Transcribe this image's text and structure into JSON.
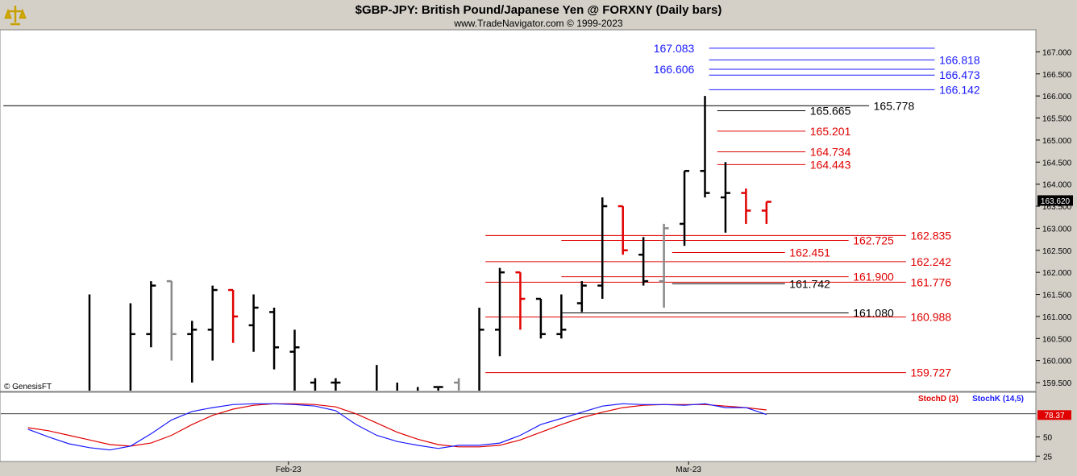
{
  "header": {
    "title": "$GBP-JPY:  British Pound/Japanese Yen @ FORXNY  (Daily bars)",
    "copyright": "www.TradeNavigator.com © 1999-2023",
    "data_source": "© GenesisFT"
  },
  "colors": {
    "black": "#000000",
    "red": "#e00000",
    "gray": "#888888",
    "blue": "#1a1aff",
    "navy": "#00008b",
    "panel_bg": "#ffffff",
    "frame_bg": "#d4d0c8"
  },
  "chart_data": [
    {
      "type": "ohlc",
      "name": "price",
      "title": "$GBP-JPY:  British Pound/Japanese Yen @ FORXNY  (Daily bars)",
      "ylim": [
        159.3,
        167.5
      ],
      "y_ticks": [
        "159.500",
        "160.000",
        "160.500",
        "161.000",
        "161.500",
        "162.000",
        "162.500",
        "163.000",
        "163.500",
        "164.000",
        "164.500",
        "165.000",
        "165.500",
        "166.000",
        "166.500",
        "167.000"
      ],
      "last_price_label": "163.620",
      "last_price": 163.62,
      "x_ticks": [
        {
          "label": "Feb-23",
          "bar": 9.7
        },
        {
          "label": "Mar-23",
          "bar": 29.2
        }
      ],
      "bars": [
        {
          "o": 159.0,
          "h": 161.5,
          "l": 158.5,
          "c": 158.9,
          "col": "black"
        },
        {
          "o": 158.5,
          "h": 158.9,
          "l": 158.0,
          "c": 158.6,
          "col": "black"
        },
        {
          "o": 158.6,
          "h": 161.3,
          "l": 158.3,
          "c": 160.6,
          "col": "black"
        },
        {
          "o": 160.6,
          "h": 161.8,
          "l": 160.3,
          "c": 161.7,
          "col": "black"
        },
        {
          "o": 161.8,
          "h": 161.8,
          "l": 160.0,
          "c": 160.6,
          "col": "gray"
        },
        {
          "o": 160.6,
          "h": 160.9,
          "l": 159.5,
          "c": 160.7,
          "col": "black"
        },
        {
          "o": 160.7,
          "h": 161.7,
          "l": 160.0,
          "c": 161.6,
          "col": "black"
        },
        {
          "o": 161.6,
          "h": 161.6,
          "l": 160.4,
          "c": 161.0,
          "col": "red"
        },
        {
          "o": 160.8,
          "h": 161.5,
          "l": 160.2,
          "c": 161.2,
          "col": "black"
        },
        {
          "o": 161.1,
          "h": 161.2,
          "l": 159.8,
          "c": 160.3,
          "col": "black"
        },
        {
          "o": 160.2,
          "h": 160.7,
          "l": 159.3,
          "c": 160.3,
          "col": "black"
        },
        {
          "o": 159.5,
          "h": 159.6,
          "l": 158.5,
          "c": 158.8,
          "col": "black"
        },
        {
          "o": 159.5,
          "h": 159.6,
          "l": 158.6,
          "c": 159.5,
          "col": "black"
        },
        {
          "o": 158.8,
          "h": 159.1,
          "l": 158.5,
          "c": 158.8,
          "col": "black"
        },
        {
          "o": 158.8,
          "h": 159.9,
          "l": 158.5,
          "c": 158.8,
          "col": "black"
        },
        {
          "o": 158.7,
          "h": 159.5,
          "l": 158.4,
          "c": 158.8,
          "col": "black"
        },
        {
          "o": 158.6,
          "h": 159.4,
          "l": 158.3,
          "c": 158.6,
          "col": "black"
        },
        {
          "o": 159.4,
          "h": 159.4,
          "l": 158.6,
          "c": 159.4,
          "col": "black"
        },
        {
          "o": 159.5,
          "h": 159.6,
          "l": 158.6,
          "c": 159.3,
          "col": "gray"
        },
        {
          "o": 159.3,
          "h": 161.2,
          "l": 159.1,
          "c": 160.7,
          "col": "black"
        },
        {
          "o": 160.7,
          "h": 162.1,
          "l": 160.1,
          "c": 162.0,
          "col": "black"
        },
        {
          "o": 162.0,
          "h": 162.0,
          "l": 160.7,
          "c": 161.4,
          "col": "red"
        },
        {
          "o": 161.4,
          "h": 161.4,
          "l": 160.5,
          "c": 160.6,
          "col": "black"
        },
        {
          "o": 160.6,
          "h": 161.5,
          "l": 160.5,
          "c": 160.7,
          "col": "black"
        },
        {
          "o": 161.3,
          "h": 161.8,
          "l": 161.1,
          "c": 161.7,
          "col": "black"
        },
        {
          "o": 161.7,
          "h": 163.7,
          "l": 161.4,
          "c": 163.5,
          "col": "black"
        },
        {
          "o": 163.5,
          "h": 163.5,
          "l": 162.4,
          "c": 162.5,
          "col": "red"
        },
        {
          "o": 162.4,
          "h": 162.8,
          "l": 161.7,
          "c": 161.8,
          "col": "black"
        },
        {
          "o": 161.8,
          "h": 163.1,
          "l": 161.2,
          "c": 163.0,
          "col": "gray"
        },
        {
          "o": 163.1,
          "h": 164.3,
          "l": 162.6,
          "c": 164.3,
          "col": "black"
        },
        {
          "o": 164.3,
          "h": 166.0,
          "l": 163.7,
          "c": 163.8,
          "col": "black"
        },
        {
          "o": 163.7,
          "h": 164.5,
          "l": 162.9,
          "c": 163.8,
          "col": "black"
        },
        {
          "o": 163.8,
          "h": 163.9,
          "l": 163.1,
          "c": 163.4,
          "col": "red"
        },
        {
          "o": 163.4,
          "h": 163.6,
          "l": 163.1,
          "c": 163.6,
          "col": "red"
        }
      ],
      "levels": [
        {
          "value": 167.083,
          "label": "167.083",
          "color": "blue",
          "x1_bar": 30.2,
          "x2_bar": 41.2,
          "label_side": "left",
          "label_bar": 29.6
        },
        {
          "value": 166.818,
          "label": "166.818",
          "color": "blue",
          "x1_bar": 30.2,
          "x2_bar": 41.2,
          "label_side": "right",
          "label_bar": 41.3
        },
        {
          "value": 166.606,
          "label": "166.606",
          "color": "blue",
          "x1_bar": 30.2,
          "x2_bar": 41.2,
          "label_side": "left",
          "label_bar": 29.6
        },
        {
          "value": 166.473,
          "label": "166.473",
          "color": "blue",
          "x1_bar": 30.2,
          "x2_bar": 41.2,
          "label_side": "right",
          "label_bar": 41.3
        },
        {
          "value": 166.142,
          "label": "166.142",
          "color": "blue",
          "x1_bar": 30.2,
          "x2_bar": 41.2,
          "label_side": "right",
          "label_bar": 41.3
        },
        {
          "value": 165.778,
          "label": "165.778",
          "color": "black",
          "x1_bar": -4.2,
          "x2_bar": 38.0,
          "label_side": "right",
          "label_bar": 38.1
        },
        {
          "value": 165.665,
          "label": "165.665",
          "color": "black",
          "x1_bar": 30.6,
          "x2_bar": 34.9,
          "label_side": "right",
          "label_bar": 35.0
        },
        {
          "value": 165.201,
          "label": "165.201",
          "color": "red",
          "x1_bar": 30.6,
          "x2_bar": 34.9,
          "label_side": "right",
          "label_bar": 35.0
        },
        {
          "value": 164.734,
          "label": "164.734",
          "color": "red",
          "x1_bar": 30.6,
          "x2_bar": 34.9,
          "label_side": "right",
          "label_bar": 35.0
        },
        {
          "value": 164.443,
          "label": "164.443",
          "color": "red",
          "x1_bar": 30.6,
          "x2_bar": 34.9,
          "label_side": "right",
          "label_bar": 35.0
        },
        {
          "value": 162.835,
          "label": "162.835",
          "color": "red",
          "x1_bar": 19.3,
          "x2_bar": 39.8,
          "label_side": "right",
          "label_bar": 39.9
        },
        {
          "value": 162.725,
          "label": "162.725",
          "color": "red",
          "x1_bar": 23.0,
          "x2_bar": 37.0,
          "label_side": "right",
          "label_bar": 37.1
        },
        {
          "value": 162.451,
          "label": "162.451",
          "color": "red",
          "x1_bar": 28.4,
          "x2_bar": 33.9,
          "label_side": "right",
          "label_bar": 34.0
        },
        {
          "value": 162.242,
          "label": "162.242",
          "color": "red",
          "x1_bar": 19.3,
          "x2_bar": 39.8,
          "label_side": "right",
          "label_bar": 39.9
        },
        {
          "value": 161.9,
          "label": "161.900",
          "color": "red",
          "x1_bar": 23.0,
          "x2_bar": 37.0,
          "label_side": "right",
          "label_bar": 37.1
        },
        {
          "value": 161.776,
          "label": "161.776",
          "color": "red",
          "x1_bar": 19.3,
          "x2_bar": 39.8,
          "label_side": "right",
          "label_bar": 39.9
        },
        {
          "value": 161.742,
          "label": "161.742",
          "color": "black",
          "x1_bar": 28.4,
          "x2_bar": 33.9,
          "label_side": "right",
          "label_bar": 34.0
        },
        {
          "value": 161.08,
          "label": "161.080",
          "color": "black",
          "x1_bar": 23.0,
          "x2_bar": 37.0,
          "label_side": "right",
          "label_bar": 37.1
        },
        {
          "value": 160.988,
          "label": "160.988",
          "color": "red",
          "x1_bar": 19.3,
          "x2_bar": 39.8,
          "label_side": "right",
          "label_bar": 39.9
        },
        {
          "value": 159.727,
          "label": "159.727",
          "color": "red",
          "x1_bar": 19.3,
          "x2_bar": 39.8,
          "label_side": "right",
          "label_bar": 39.9
        }
      ]
    },
    {
      "type": "line",
      "name": "stochastic",
      "ylim": [
        18,
        108
      ],
      "y_ticks": [
        "50",
        "25"
      ],
      "highlight_value": 78.37,
      "highlight_label": "78.37",
      "reference_value": 80,
      "legend": [
        {
          "label": "StochD (3)",
          "color": "red"
        },
        {
          "label": "StochK (14,5)",
          "color": "blue"
        }
      ],
      "series": [
        {
          "name": "StochD (3)",
          "color": "red",
          "x": [
            -3,
            -2,
            -1,
            0,
            1,
            2,
            3,
            4,
            5,
            6,
            7,
            8,
            9,
            10,
            11,
            12,
            13,
            14,
            15,
            16,
            17,
            18,
            19,
            20,
            21,
            22,
            23,
            24,
            25,
            26,
            27,
            28,
            29,
            30,
            31,
            32,
            33
          ],
          "values": [
            62,
            58,
            52,
            46,
            40,
            38,
            42,
            52,
            66,
            78,
            86,
            91,
            93,
            93,
            92,
            89,
            80,
            68,
            56,
            47,
            40,
            37,
            37,
            39,
            46,
            56,
            66,
            75,
            82,
            88,
            91,
            92,
            92,
            92,
            90,
            88,
            85
          ]
        },
        {
          "name": "StochK (14,5)",
          "color": "blue",
          "x": [
            -3,
            -2,
            -1,
            0,
            1,
            2,
            3,
            4,
            5,
            6,
            7,
            8,
            9,
            10,
            11,
            12,
            13,
            14,
            15,
            16,
            17,
            18,
            19,
            20,
            21,
            22,
            23,
            24,
            25,
            26,
            27,
            28,
            29,
            30,
            31,
            32,
            33
          ],
          "values": [
            60,
            50,
            41,
            36,
            33,
            38,
            54,
            72,
            83,
            88,
            92,
            93,
            93,
            92,
            90,
            84,
            66,
            52,
            44,
            39,
            35,
            39,
            39,
            42,
            52,
            66,
            74,
            82,
            90,
            93,
            92,
            92,
            91,
            93,
            88,
            88,
            79
          ]
        }
      ]
    }
  ]
}
